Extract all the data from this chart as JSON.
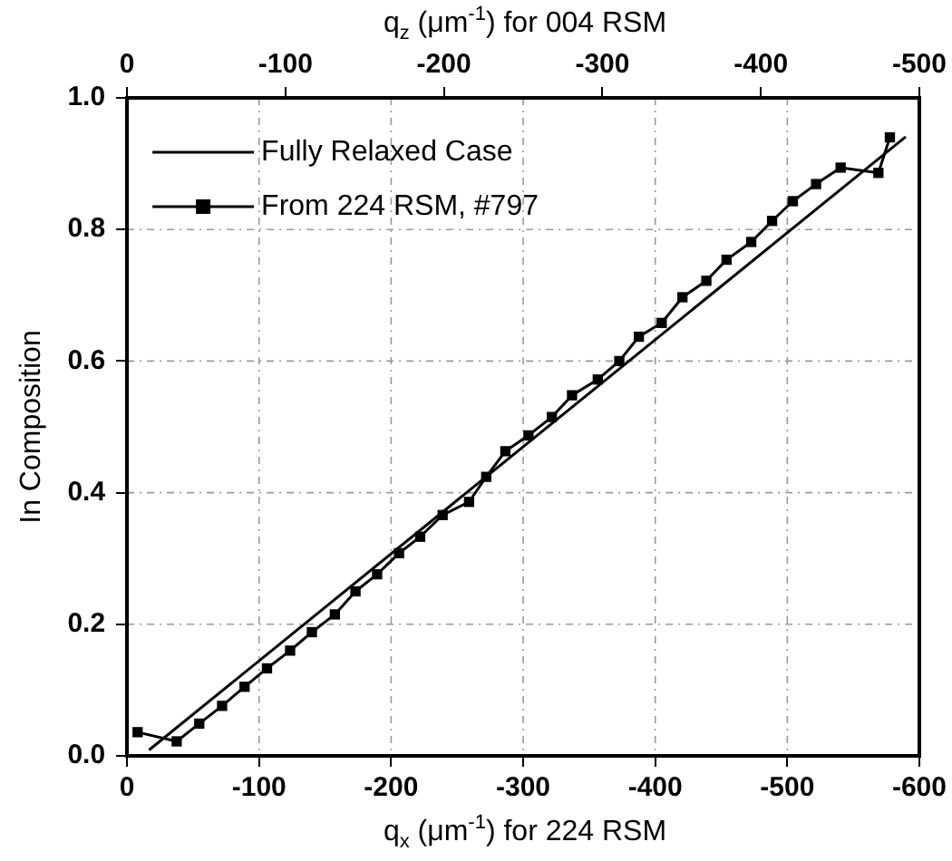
{
  "chart_data": {
    "type": "line",
    "xlabel": "q$_{x}$ (μm$^{-1}$) for 224 RSM",
    "x2label": "q$_{z}$ (μm$^{-1}$) for 004 RSM",
    "ylabel": "In Composition",
    "xlim": [
      0,
      -600
    ],
    "xticks": [
      0,
      -100,
      -200,
      -300,
      -400,
      -500,
      -600
    ],
    "x2lim": [
      0,
      -500
    ],
    "x2ticks": [
      0,
      -100,
      -200,
      -300,
      -400,
      -500
    ],
    "ylim": [
      0,
      1
    ],
    "yticks": [
      {
        "value": 0,
        "label": "0.0"
      },
      {
        "value": 0.2,
        "label": "0.2"
      },
      {
        "value": 0.4,
        "label": "0.4"
      },
      {
        "value": 0.6,
        "label": "0.6"
      },
      {
        "value": 0.8,
        "label": "0.8"
      },
      {
        "value": 1,
        "label": "1.0"
      }
    ],
    "grid": true,
    "legend": "top left",
    "series": [
      {
        "name": "Fully Relaxed Case",
        "color": "#000000",
        "marker": "none",
        "x": [
          -16.7,
          -589.7
        ],
        "values": [
          0.009,
          0.941
        ]
      },
      {
        "name": "From 224 RSM, #797",
        "color": "#000000",
        "marker": "square",
        "x": [
          -8,
          -37.6,
          -54.7,
          -72,
          -89,
          -106,
          -123.5,
          -140,
          -157.4,
          -173,
          -189.4,
          -206,
          -222,
          -239,
          -259,
          -272,
          -286.5,
          -304,
          -321.7,
          -337,
          -356.5,
          -372.8,
          -387.6,
          -404.9,
          -420.6,
          -438.7,
          -454,
          -472.7,
          -488.5,
          -504.2,
          -521.8,
          -540.4,
          -569,
          -577.7
        ],
        "values": [
          0.036,
          0.022,
          0.049,
          0.076,
          0.105,
          0.133,
          0.16,
          0.188,
          0.215,
          0.25,
          0.276,
          0.308,
          0.333,
          0.366,
          0.386,
          0.424,
          0.463,
          0.487,
          0.515,
          0.548,
          0.572,
          0.6,
          0.637,
          0.658,
          0.697,
          0.722,
          0.754,
          0.781,
          0.813,
          0.843,
          0.869,
          0.894,
          0.886,
          0.94
        ]
      }
    ]
  }
}
